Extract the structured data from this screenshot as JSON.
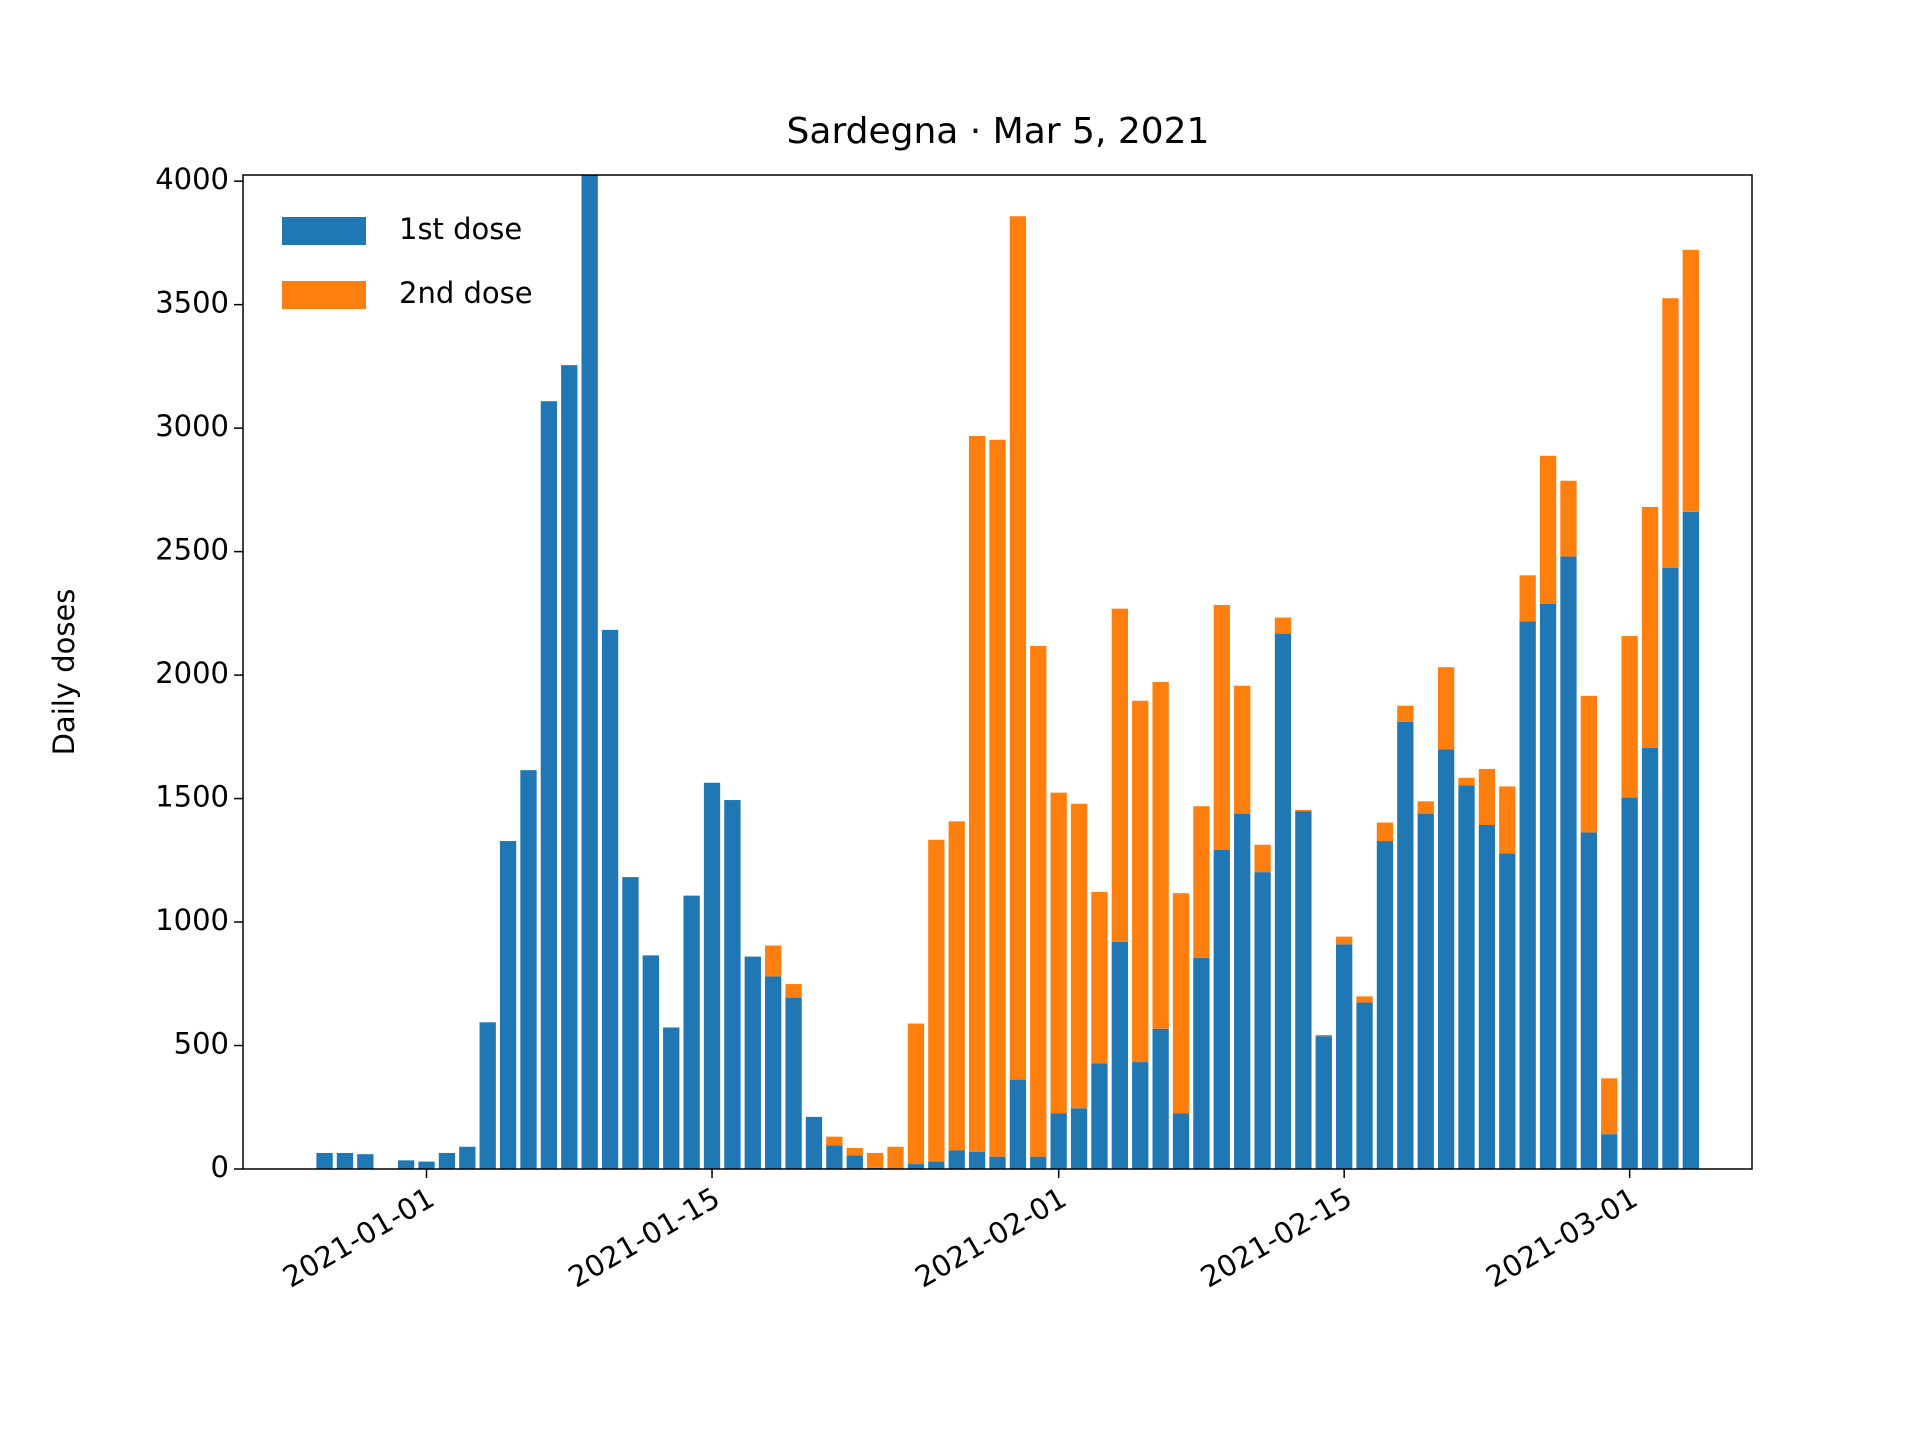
{
  "chart_data": {
    "type": "stacked-bar",
    "title": "Sardegna · Mar 5, 2021",
    "y_label": "Daily doses",
    "x": [
      "2020-12-27",
      "2020-12-28",
      "2020-12-29",
      "2020-12-30",
      "2020-12-31",
      "2021-01-01",
      "2021-01-02",
      "2021-01-03",
      "2021-01-04",
      "2021-01-05",
      "2021-01-06",
      "2021-01-07",
      "2021-01-08",
      "2021-01-09",
      "2021-01-10",
      "2021-01-11",
      "2021-01-12",
      "2021-01-13",
      "2021-01-14",
      "2021-01-15",
      "2021-01-16",
      "2021-01-17",
      "2021-01-18",
      "2021-01-19",
      "2021-01-20",
      "2021-01-21",
      "2021-01-22",
      "2021-01-23",
      "2021-01-24",
      "2021-01-25",
      "2021-01-26",
      "2021-01-27",
      "2021-01-28",
      "2021-01-29",
      "2021-01-30",
      "2021-01-31",
      "2021-02-01",
      "2021-02-02",
      "2021-02-03",
      "2021-02-04",
      "2021-02-05",
      "2021-02-06",
      "2021-02-07",
      "2021-02-08",
      "2021-02-09",
      "2021-02-10",
      "2021-02-11",
      "2021-02-12",
      "2021-02-13",
      "2021-02-14",
      "2021-02-15",
      "2021-02-16",
      "2021-02-17",
      "2021-02-18",
      "2021-02-19",
      "2021-02-20",
      "2021-02-21",
      "2021-02-22",
      "2021-02-23",
      "2021-02-24",
      "2021-02-25",
      "2021-02-26",
      "2021-02-27",
      "2021-02-28",
      "2021-03-01",
      "2021-03-02",
      "2021-03-03",
      "2021-03-04"
    ],
    "series": [
      {
        "name": "1st dose",
        "color": "#1f77b4",
        "values": [
          65,
          65,
          60,
          0,
          35,
          30,
          65,
          90,
          594,
          1328,
          1615,
          3109,
          3255,
          4250,
          2183,
          1182,
          865,
          573,
          1107,
          1564,
          1494,
          860,
          780,
          694,
          211,
          96,
          55,
          5,
          0,
          20,
          30,
          75,
          70,
          50,
          362,
          50,
          226,
          246,
          427,
          920,
          433,
          568,
          226,
          855,
          1293,
          1439,
          1202,
          2168,
          1449,
          538,
          910,
          674,
          1328,
          1811,
          1439,
          1700,
          1554,
          1393,
          1278,
          2218,
          2289,
          2480,
          1363,
          141,
          1504,
          1705,
          2435,
          2661
        ]
      },
      {
        "name": "2nd dose",
        "color": "#ff7f0e",
        "values": [
          0,
          0,
          0,
          0,
          0,
          0,
          0,
          0,
          0,
          0,
          0,
          0,
          0,
          0,
          0,
          0,
          0,
          0,
          0,
          0,
          0,
          0,
          125,
          55,
          0,
          35,
          30,
          60,
          90,
          569,
          1303,
          1333,
          2898,
          2903,
          3496,
          2068,
          1298,
          1233,
          695,
          1349,
          1463,
          1404,
          891,
          614,
          991,
          518,
          111,
          65,
          5,
          5,
          31,
          25,
          75,
          65,
          50,
          332,
          30,
          227,
          271,
          186,
          599,
          307,
          553,
          226,
          654,
          976,
          1091,
          1061
        ]
      }
    ],
    "xlim": [
      "2020-12-23",
      "2021-03-07"
    ],
    "xticks": [
      "2021-01-01",
      "2021-01-15",
      "2021-02-01",
      "2021-02-15",
      "2021-03-01"
    ],
    "ylim": [
      0,
      4025
    ],
    "yticks": [
      0,
      500,
      1000,
      1500,
      2000,
      2500,
      3000,
      3500,
      4000
    ],
    "legend": "upper left"
  }
}
